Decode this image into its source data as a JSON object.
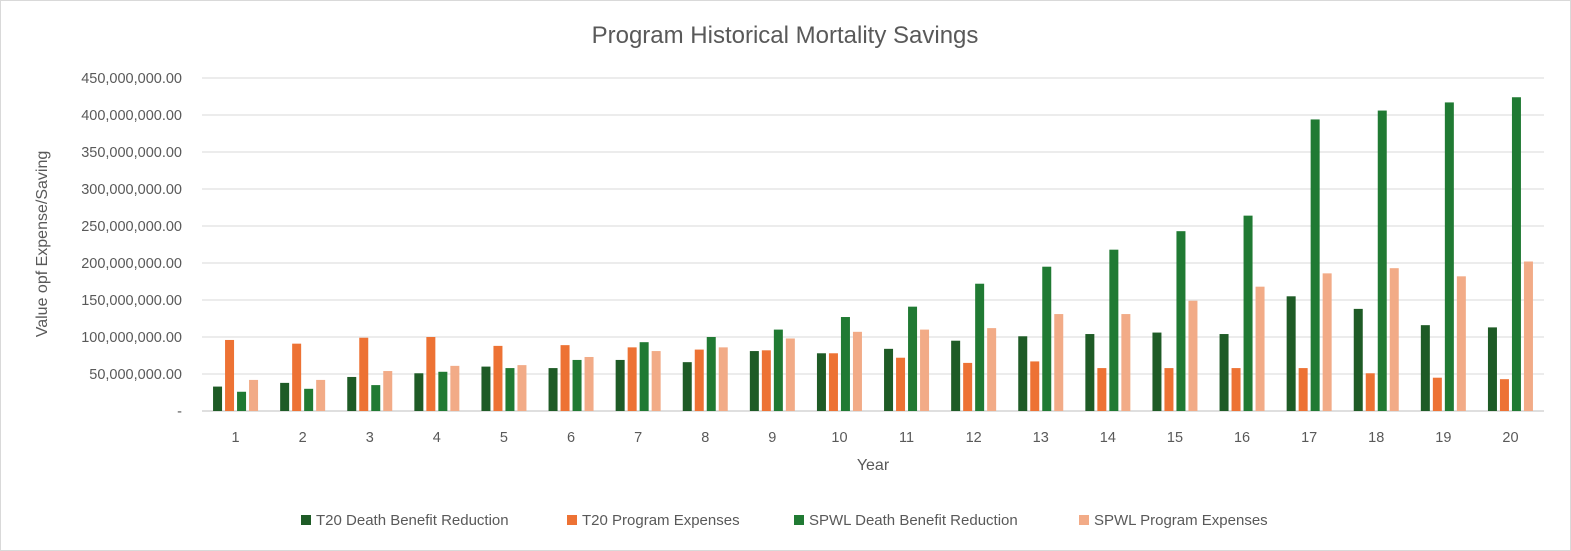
{
  "chart_data": {
    "type": "bar",
    "title": "Program Historical Mortality Savings",
    "xlabel": "Year",
    "ylabel": "Value opf Expense/Saving",
    "categories": [
      "1",
      "2",
      "3",
      "4",
      "5",
      "6",
      "7",
      "8",
      "9",
      "10",
      "11",
      "12",
      "13",
      "14",
      "15",
      "16",
      "17",
      "18",
      "19",
      "20"
    ],
    "ylim": [
      0,
      450000000
    ],
    "yticks": [
      {
        "value": 0,
        "label": "-"
      },
      {
        "value": 50000000,
        "label": "50,000,000.00"
      },
      {
        "value": 100000000,
        "label": "100,000,000.00"
      },
      {
        "value": 150000000,
        "label": "150,000,000.00"
      },
      {
        "value": 200000000,
        "label": "200,000,000.00"
      },
      {
        "value": 250000000,
        "label": "250,000,000.00"
      },
      {
        "value": 300000000,
        "label": "300,000,000.00"
      },
      {
        "value": 350000000,
        "label": "350,000,000.00"
      },
      {
        "value": 400000000,
        "label": "400,000,000.00"
      },
      {
        "value": 450000000,
        "label": "450,000,000.00"
      }
    ],
    "grid": true,
    "legend_position": "bottom",
    "series": [
      {
        "name": "T20 Death Benefit Reduction",
        "color": "#1e5b26",
        "values": [
          33000000,
          38000000,
          46000000,
          51000000,
          60000000,
          58000000,
          69000000,
          66000000,
          81000000,
          78000000,
          84000000,
          95000000,
          101000000,
          104000000,
          106000000,
          104000000,
          155000000,
          138000000,
          116000000,
          113000000
        ]
      },
      {
        "name": "T20 Program Expenses",
        "color": "#ed7234",
        "values": [
          96000000,
          91000000,
          99000000,
          100000000,
          88000000,
          89000000,
          86000000,
          83000000,
          82000000,
          78000000,
          72000000,
          65000000,
          67000000,
          58000000,
          58000000,
          58000000,
          58000000,
          51000000,
          45000000,
          43000000
        ]
      },
      {
        "name": "SPWL Death Benefit Reduction",
        "color": "#207a33",
        "values": [
          26000000,
          30000000,
          35000000,
          53000000,
          58000000,
          69000000,
          93000000,
          100000000,
          110000000,
          127000000,
          141000000,
          172000000,
          195000000,
          218000000,
          243000000,
          264000000,
          394000000,
          406000000,
          417000000,
          424000000
        ]
      },
      {
        "name": "SPWL Program Expenses",
        "color": "#f2ab87",
        "values": [
          42000000,
          42000000,
          54000000,
          61000000,
          62000000,
          73000000,
          81000000,
          86000000,
          98000000,
          107000000,
          110000000,
          112000000,
          131000000,
          131000000,
          149000000,
          168000000,
          186000000,
          193000000,
          182000000,
          202000000
        ]
      }
    ]
  }
}
